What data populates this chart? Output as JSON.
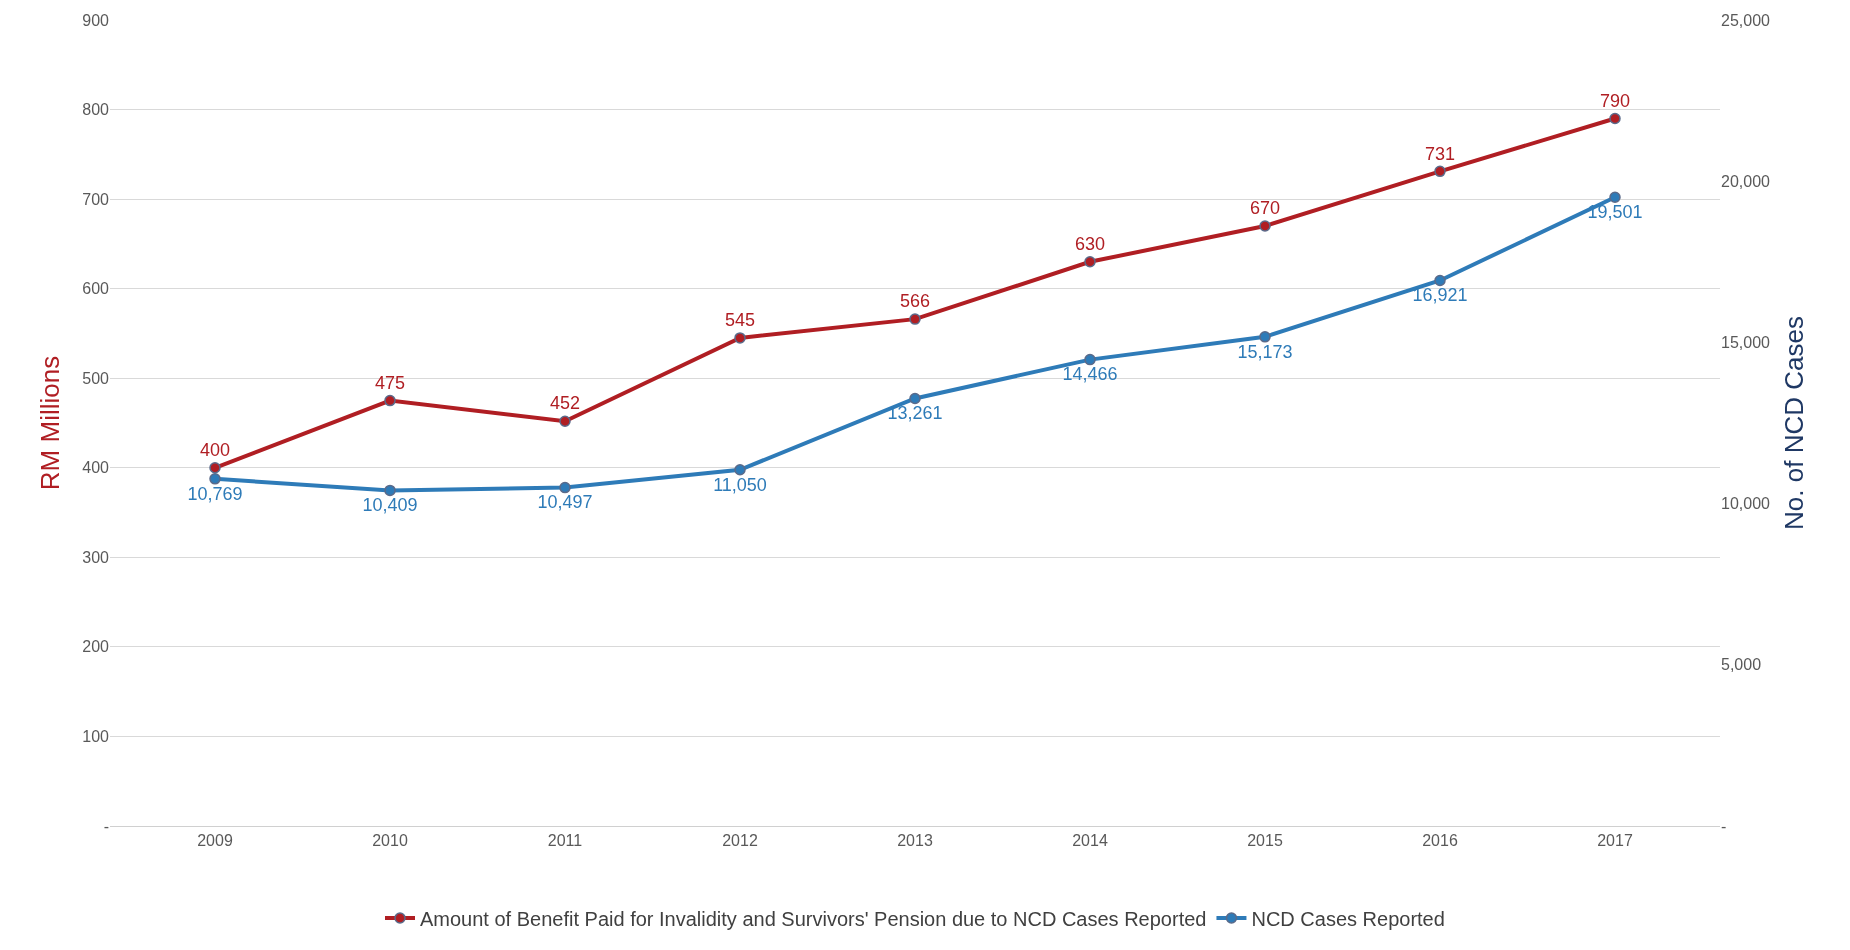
{
  "chart_data": {
    "type": "line",
    "categories": [
      "2009",
      "2010",
      "2011",
      "2012",
      "2013",
      "2014",
      "2015",
      "2016",
      "2017"
    ],
    "ylabel": "RM Millions",
    "y2label": "No. of NCD Cases",
    "series": [
      {
        "name": "Amount of Benefit Paid for Invalidity and Survivors' Pension due to NCD Cases Reported",
        "color": "#b01e23",
        "values": [
          400,
          475,
          452,
          545,
          566,
          630,
          670,
          731,
          790
        ],
        "value_labels": [
          "400",
          "475",
          "452",
          "545",
          "566",
          "630",
          "670",
          "731",
          "790"
        ]
      },
      {
        "name": "NCD Cases Reported",
        "color": "#2e7bb8",
        "axis": "y2",
        "values": [
          10769,
          10409,
          10497,
          11050,
          13261,
          14466,
          15173,
          16921,
          19501
        ],
        "value_labels": [
          "10,769",
          "10,409",
          "10,497",
          "11,050",
          "13,261",
          "14,466",
          "15,173",
          "16,921",
          "19,501"
        ]
      }
    ],
    "ylim": [
      0,
      900
    ],
    "yticks": [
      {
        "value": 0,
        "label": "-"
      },
      100,
      200,
      300,
      400,
      500,
      600,
      700,
      800,
      900
    ],
    "y2lim": [
      0,
      25000
    ],
    "y2ticks": [
      {
        "value": 0,
        "label": "-"
      },
      {
        "value": 5000,
        "label": "5,000"
      },
      {
        "value": 10000,
        "label": "10,000"
      },
      {
        "value": 15000,
        "label": "15,000"
      },
      {
        "value": 20000,
        "label": "20,000"
      },
      {
        "value": 25000,
        "label": "25,000"
      }
    ],
    "grid": "y",
    "legend": "bottom",
    "marker": "circle",
    "line_style": "solid"
  }
}
